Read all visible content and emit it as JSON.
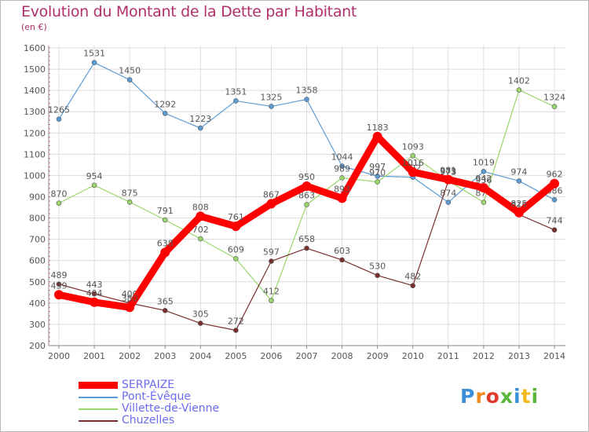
{
  "title": "Evolution du Montant de la Dette par Habitant",
  "subtitle": "(en €)",
  "logo_text": "Proxiti",
  "chart_data": {
    "type": "line",
    "title": "Evolution du Montant de la Dette par Habitant",
    "subtitle": "(en €)",
    "x": [
      "2000",
      "2001",
      "2002",
      "2003",
      "2004",
      "2005",
      "2006",
      "2007",
      "2008",
      "2009",
      "2010",
      "2011",
      "2012",
      "2013",
      "2014"
    ],
    "ylim": [
      200,
      1600
    ],
    "yticks": [
      200,
      300,
      400,
      500,
      600,
      700,
      800,
      900,
      1000,
      1100,
      1200,
      1300,
      1400,
      1500,
      1600
    ],
    "grid": true,
    "legend_position": "bottom-left",
    "series": [
      {
        "name": "SERPAIZE",
        "color": "#ff0000",
        "emphasis": true,
        "values": [
          439,
          404,
          380,
          638,
          808,
          761,
          867,
          950,
          893,
          1183,
          1016,
          981,
          942,
          825,
          962
        ],
        "labels": [
          "439",
          "404",
          "380",
          "638",
          "808",
          "761",
          "867",
          "950",
          "893",
          "1183",
          "1016",
          "981",
          "942",
          "825",
          "962"
        ]
      },
      {
        "name": "Pont-Évêque",
        "color": "#5b9bd5",
        "values": [
          1265,
          1531,
          1450,
          1292,
          1223,
          1351,
          1325,
          1358,
          1044,
          997,
          992,
          874,
          1019,
          974,
          886
        ],
        "labels": [
          "1265",
          "1531",
          "1450",
          "1292",
          "1223",
          "1351",
          "1325",
          "1358",
          "1044",
          "997",
          "992",
          "874",
          "1019",
          "974",
          "886"
        ]
      },
      {
        "name": "Villette-de-Vienne",
        "color": "#99d66b",
        "values": [
          870,
          954,
          875,
          791,
          702,
          609,
          412,
          863,
          989,
          970,
          1093,
          975,
          874,
          1402,
          1324
        ],
        "labels": [
          "870",
          "954",
          "875",
          "791",
          "702",
          "609",
          "412",
          "863",
          "989",
          "970",
          "1093",
          "975",
          "874",
          "1402",
          "1324"
        ]
      },
      {
        "name": "Chuzelles",
        "color": "#7a2e2e",
        "values": [
          489,
          443,
          400,
          365,
          305,
          272,
          597,
          658,
          603,
          530,
          482,
          973,
          936,
          816,
          744
        ],
        "labels": [
          "489",
          "443",
          "400",
          "365",
          "305",
          "272",
          "597",
          "658",
          "603",
          "530",
          "482",
          "973",
          "936",
          "816",
          "744"
        ]
      }
    ]
  }
}
